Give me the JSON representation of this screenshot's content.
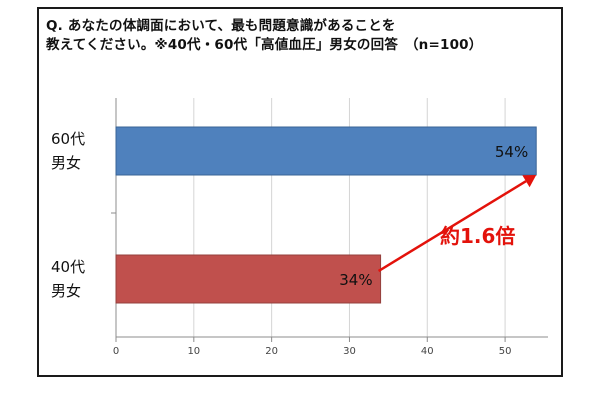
{
  "question": {
    "line1": "Q. あなたの体調面において、最も問題意識があることを",
    "line2": "教えてください。※40代・60代「高値血圧」男女の回答　（n=100）"
  },
  "annotation": {
    "text": "約1.6倍"
  },
  "colors": {
    "bar_60s": "#4f81bd",
    "bar_60s_border": "#3a6496",
    "bar_40s": "#c0504d",
    "bar_40s_border": "#94403d",
    "arrow": "#e3120b",
    "grid": "#d4d4d4",
    "axis": "#8c8c8c"
  },
  "chart_data": {
    "type": "bar",
    "orientation": "horizontal",
    "categories": [
      {
        "lines": [
          "60代",
          "男女"
        ],
        "value": 54,
        "label": "54%"
      },
      {
        "lines": [
          "40代",
          "男女"
        ],
        "value": 34,
        "label": "34%"
      }
    ],
    "xlim": [
      0,
      55
    ],
    "xticks": [
      0,
      10,
      20,
      30,
      40,
      50
    ],
    "grid": true,
    "annotation": {
      "text": "約1.6倍",
      "from": "40代 男女",
      "to": "60代 男女"
    }
  }
}
